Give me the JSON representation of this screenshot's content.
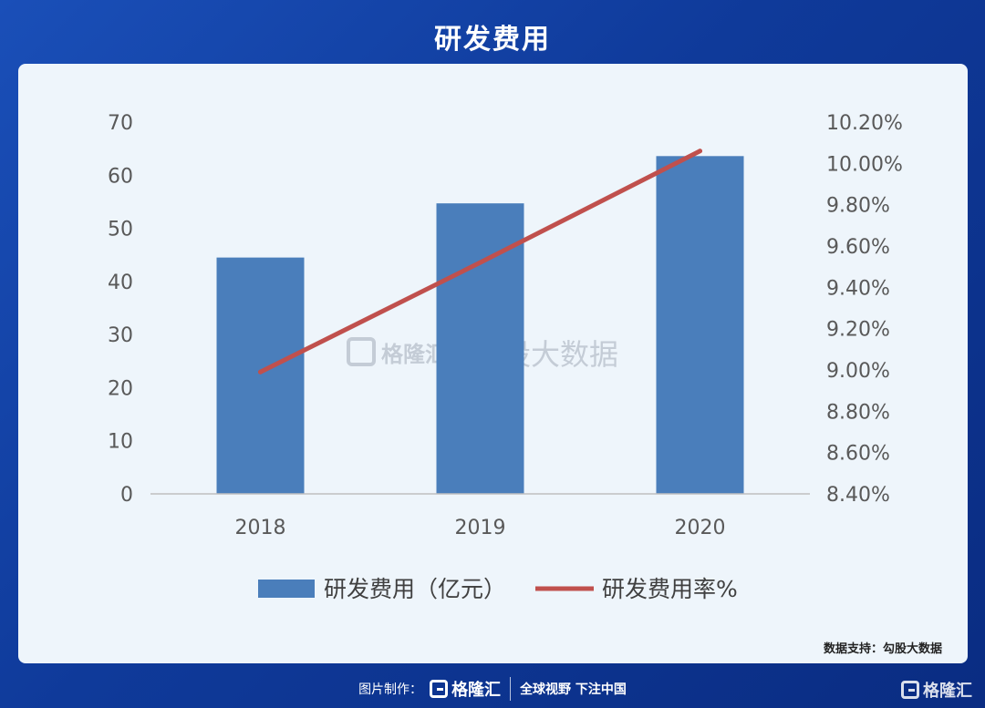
{
  "header": {
    "title": "研发费用"
  },
  "source": {
    "text": "数据支持：勾股大数据"
  },
  "watermark": {
    "brand": "格隆汇",
    "text": "勾股大数据"
  },
  "footer": {
    "label": "图片制作：",
    "brand": "格隆汇",
    "slogan": "全球视野 下注中国",
    "corner_brand": "格隆汇"
  },
  "colors": {
    "bar": "#4a7ebb",
    "line": "#c0504d",
    "card": "#eef5fb"
  },
  "chart_data": {
    "type": "bar",
    "categories": [
      "2018",
      "2019",
      "2020"
    ],
    "series": [
      {
        "name": "研发费用（亿元）",
        "type": "bar",
        "axis": "left",
        "values": [
          44.5,
          54.7,
          63.6
        ]
      },
      {
        "name": "研发费用率%",
        "type": "line",
        "axis": "right",
        "values": [
          8.99,
          9.52,
          10.06
        ]
      }
    ],
    "y_left": {
      "min": 0,
      "max": 70,
      "ticks": [
        "0",
        "10",
        "20",
        "30",
        "40",
        "50",
        "60",
        "70"
      ]
    },
    "y_right": {
      "min": 8.4,
      "max": 10.2,
      "ticks": [
        "8.40%",
        "8.60%",
        "8.80%",
        "9.00%",
        "9.20%",
        "9.40%",
        "9.60%",
        "9.80%",
        "10.00%",
        "10.20%"
      ]
    },
    "grid": false,
    "legend": "bottom"
  }
}
